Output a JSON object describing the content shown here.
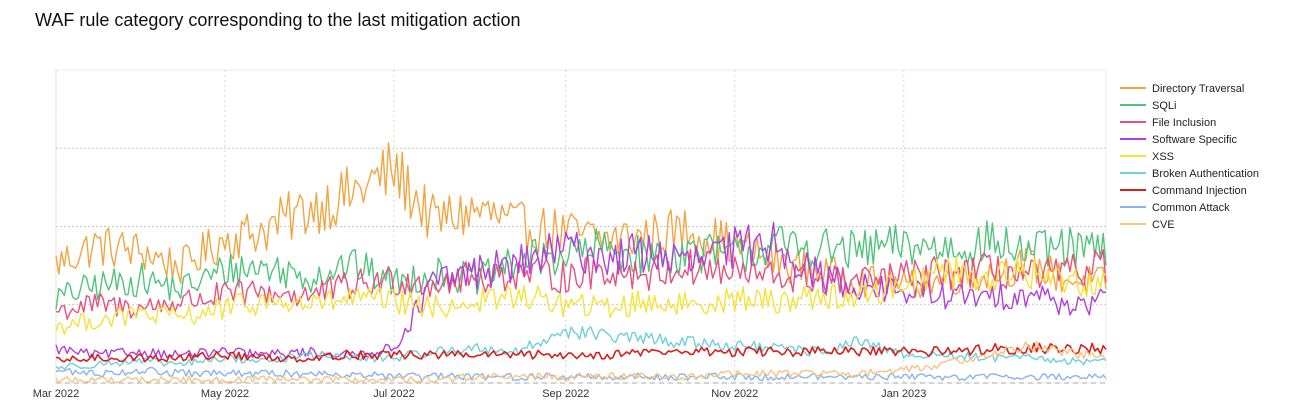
{
  "chart_data": {
    "type": "line",
    "title": "WAF rule category corresponding to the last mitigation action",
    "xlabel": "",
    "ylabel": "",
    "x_range": [
      "2022-03-01",
      "2023-03-15"
    ],
    "x_tick_labels": [
      {
        "date": "2022-03-01",
        "label": "Mar 2022"
      },
      {
        "date": "2022-05-01",
        "label": "May 2022"
      },
      {
        "date": "2022-07-01",
        "label": "Jul 2022"
      },
      {
        "date": "2022-09-01",
        "label": "Sep 2022"
      },
      {
        "date": "2022-11-01",
        "label": "Nov 2022"
      },
      {
        "date": "2023-01-01",
        "label": "Jan 2023"
      }
    ],
    "ylim": [
      0,
      10
    ],
    "grid": true,
    "legend_position": "right",
    "series": [
      {
        "name": "Directory Traversal",
        "color": "#f2a541",
        "points": [
          [
            "2022-03-01",
            3.8
          ],
          [
            "2022-03-15",
            4.4
          ],
          [
            "2022-04-01",
            4.2
          ],
          [
            "2022-04-15",
            3.7
          ],
          [
            "2022-05-01",
            4.6
          ],
          [
            "2022-05-15",
            4.9
          ],
          [
            "2022-06-01",
            5.6
          ],
          [
            "2022-06-15",
            6.0
          ],
          [
            "2022-07-01",
            6.8
          ],
          [
            "2022-07-15",
            5.2
          ],
          [
            "2022-08-01",
            5.5
          ],
          [
            "2022-08-15",
            5.0
          ],
          [
            "2022-09-01",
            4.8
          ],
          [
            "2022-09-15",
            4.6
          ],
          [
            "2022-10-01",
            4.7
          ],
          [
            "2022-10-15",
            4.9
          ],
          [
            "2022-11-01",
            4.4
          ],
          [
            "2022-11-15",
            3.9
          ],
          [
            "2022-12-01",
            3.6
          ],
          [
            "2022-12-15",
            3.3
          ],
          [
            "2023-01-01",
            3.1
          ],
          [
            "2023-01-15",
            3.3
          ],
          [
            "2023-02-01",
            3.5
          ],
          [
            "2023-02-15",
            3.8
          ],
          [
            "2023-03-01",
            3.3
          ],
          [
            "2023-03-15",
            3.2
          ]
        ]
      },
      {
        "name": "SQLi",
        "color": "#4fc47a",
        "points": [
          [
            "2022-03-01",
            2.7
          ],
          [
            "2022-03-15",
            3.1
          ],
          [
            "2022-04-01",
            3.3
          ],
          [
            "2022-04-15",
            3.0
          ],
          [
            "2022-05-01",
            3.6
          ],
          [
            "2022-05-15",
            3.7
          ],
          [
            "2022-06-01",
            3.4
          ],
          [
            "2022-06-15",
            3.8
          ],
          [
            "2022-07-01",
            3.2
          ],
          [
            "2022-07-15",
            3.5
          ],
          [
            "2022-08-01",
            3.3
          ],
          [
            "2022-08-15",
            3.9
          ],
          [
            "2022-09-01",
            4.1
          ],
          [
            "2022-09-15",
            4.3
          ],
          [
            "2022-10-01",
            4.0
          ],
          [
            "2022-10-15",
            4.2
          ],
          [
            "2022-11-01",
            4.1
          ],
          [
            "2022-11-15",
            4.4
          ],
          [
            "2022-12-01",
            4.3
          ],
          [
            "2022-12-15",
            4.2
          ],
          [
            "2023-01-01",
            4.4
          ],
          [
            "2023-01-15",
            4.3
          ],
          [
            "2023-02-01",
            4.5
          ],
          [
            "2023-02-15",
            4.2
          ],
          [
            "2023-03-01",
            4.3
          ],
          [
            "2023-03-15",
            4.2
          ]
        ]
      },
      {
        "name": "File Inclusion",
        "color": "#e8507e",
        "points": [
          [
            "2022-03-01",
            2.3
          ],
          [
            "2022-03-15",
            2.5
          ],
          [
            "2022-04-01",
            2.4
          ],
          [
            "2022-04-15",
            2.6
          ],
          [
            "2022-05-01",
            2.8
          ],
          [
            "2022-05-15",
            2.9
          ],
          [
            "2022-06-01",
            2.8
          ],
          [
            "2022-06-15",
            3.1
          ],
          [
            "2022-07-01",
            3.3
          ],
          [
            "2022-07-15",
            3.2
          ],
          [
            "2022-08-01",
            3.4
          ],
          [
            "2022-08-15",
            3.5
          ],
          [
            "2022-09-01",
            3.4
          ],
          [
            "2022-09-15",
            3.6
          ],
          [
            "2022-10-01",
            3.5
          ],
          [
            "2022-10-15",
            3.7
          ],
          [
            "2022-11-01",
            3.5
          ],
          [
            "2022-11-15",
            3.4
          ],
          [
            "2022-12-01",
            3.3
          ],
          [
            "2022-12-15",
            3.2
          ],
          [
            "2023-01-01",
            3.4
          ],
          [
            "2023-01-15",
            3.5
          ],
          [
            "2023-02-01",
            3.6
          ],
          [
            "2023-02-15",
            3.4
          ],
          [
            "2023-03-01",
            3.5
          ],
          [
            "2023-03-15",
            3.8
          ]
        ]
      },
      {
        "name": "Software Specific",
        "color": "#b33fd9",
        "points": [
          [
            "2022-03-01",
            1.1
          ],
          [
            "2022-03-15",
            0.9
          ],
          [
            "2022-04-01",
            1.0
          ],
          [
            "2022-04-15",
            0.9
          ],
          [
            "2022-05-01",
            1.0
          ],
          [
            "2022-05-15",
            0.9
          ],
          [
            "2022-06-01",
            1.0
          ],
          [
            "2022-06-15",
            0.9
          ],
          [
            "2022-07-01",
            1.1
          ],
          [
            "2022-07-15",
            3.2
          ],
          [
            "2022-08-01",
            3.6
          ],
          [
            "2022-08-15",
            3.8
          ],
          [
            "2022-09-01",
            4.3
          ],
          [
            "2022-09-15",
            4.0
          ],
          [
            "2022-10-01",
            4.2
          ],
          [
            "2022-10-15",
            3.8
          ],
          [
            "2022-11-01",
            4.3
          ],
          [
            "2022-11-15",
            4.6
          ],
          [
            "2022-12-01",
            3.4
          ],
          [
            "2022-12-15",
            3.1
          ],
          [
            "2023-01-01",
            2.9
          ],
          [
            "2023-01-15",
            2.8
          ],
          [
            "2023-02-01",
            2.7
          ],
          [
            "2023-02-15",
            2.9
          ],
          [
            "2023-03-01",
            2.5
          ],
          [
            "2023-03-15",
            2.6
          ]
        ]
      },
      {
        "name": "XSS",
        "color": "#f7e23a",
        "points": [
          [
            "2022-03-01",
            1.8
          ],
          [
            "2022-03-15",
            2.0
          ],
          [
            "2022-04-01",
            2.2
          ],
          [
            "2022-04-15",
            2.1
          ],
          [
            "2022-05-01",
            2.4
          ],
          [
            "2022-05-15",
            2.6
          ],
          [
            "2022-06-01",
            2.5
          ],
          [
            "2022-06-15",
            2.7
          ],
          [
            "2022-07-01",
            2.6
          ],
          [
            "2022-07-15",
            2.4
          ],
          [
            "2022-08-01",
            2.6
          ],
          [
            "2022-08-15",
            2.8
          ],
          [
            "2022-09-01",
            2.5
          ],
          [
            "2022-09-15",
            2.4
          ],
          [
            "2022-10-01",
            2.6
          ],
          [
            "2022-10-15",
            2.5
          ],
          [
            "2022-11-01",
            2.7
          ],
          [
            "2022-11-15",
            2.6
          ],
          [
            "2022-12-01",
            2.8
          ],
          [
            "2022-12-15",
            2.7
          ],
          [
            "2023-01-01",
            3.2
          ],
          [
            "2023-01-15",
            3.6
          ],
          [
            "2023-02-01",
            3.4
          ],
          [
            "2023-02-15",
            3.5
          ],
          [
            "2023-03-01",
            3.3
          ],
          [
            "2023-03-15",
            3.2
          ]
        ]
      },
      {
        "name": "Broken Authentication",
        "color": "#6fcfdb",
        "points": [
          [
            "2022-03-01",
            0.5
          ],
          [
            "2022-03-15",
            0.6
          ],
          [
            "2022-04-01",
            0.7
          ],
          [
            "2022-04-15",
            0.6
          ],
          [
            "2022-05-01",
            0.8
          ],
          [
            "2022-05-15",
            0.7
          ],
          [
            "2022-06-01",
            0.9
          ],
          [
            "2022-06-15",
            0.8
          ],
          [
            "2022-07-01",
            0.8
          ],
          [
            "2022-07-15",
            1.0
          ],
          [
            "2022-08-01",
            1.1
          ],
          [
            "2022-08-15",
            1.0
          ],
          [
            "2022-09-01",
            1.7
          ],
          [
            "2022-09-15",
            1.5
          ],
          [
            "2022-10-01",
            1.4
          ],
          [
            "2022-10-15",
            1.3
          ],
          [
            "2022-11-01",
            1.2
          ],
          [
            "2022-11-15",
            1.1
          ],
          [
            "2022-12-01",
            1.0
          ],
          [
            "2022-12-15",
            1.3
          ],
          [
            "2023-01-01",
            0.9
          ],
          [
            "2023-01-15",
            0.9
          ],
          [
            "2023-02-01",
            0.8
          ],
          [
            "2023-02-15",
            0.8
          ],
          [
            "2023-03-01",
            0.7
          ],
          [
            "2023-03-15",
            0.7
          ]
        ]
      },
      {
        "name": "Command Injection",
        "color": "#d62020",
        "points": [
          [
            "2022-03-01",
            0.7
          ],
          [
            "2022-03-15",
            0.8
          ],
          [
            "2022-04-01",
            0.8
          ],
          [
            "2022-04-15",
            0.8
          ],
          [
            "2022-05-01",
            0.9
          ],
          [
            "2022-05-15",
            0.8
          ],
          [
            "2022-06-01",
            0.8
          ],
          [
            "2022-06-15",
            0.9
          ],
          [
            "2022-07-01",
            0.9
          ],
          [
            "2022-07-15",
            0.9
          ],
          [
            "2022-08-01",
            0.9
          ],
          [
            "2022-08-15",
            0.9
          ],
          [
            "2022-09-01",
            0.9
          ],
          [
            "2022-09-15",
            0.9
          ],
          [
            "2022-10-01",
            1.0
          ],
          [
            "2022-10-15",
            1.0
          ],
          [
            "2022-11-01",
            1.0
          ],
          [
            "2022-11-15",
            1.0
          ],
          [
            "2022-12-01",
            1.0
          ],
          [
            "2022-12-15",
            1.0
          ],
          [
            "2023-01-01",
            1.0
          ],
          [
            "2023-01-15",
            1.0
          ],
          [
            "2023-02-01",
            1.1
          ],
          [
            "2023-02-15",
            1.1
          ],
          [
            "2023-03-01",
            1.1
          ],
          [
            "2023-03-15",
            1.1
          ]
        ]
      },
      {
        "name": "Common Attack",
        "color": "#8ab4ef",
        "points": [
          [
            "2022-03-01",
            0.4
          ],
          [
            "2022-03-15",
            0.3
          ],
          [
            "2022-04-01",
            0.4
          ],
          [
            "2022-04-15",
            0.3
          ],
          [
            "2022-05-01",
            0.3
          ],
          [
            "2022-05-15",
            0.3
          ],
          [
            "2022-06-01",
            0.3
          ],
          [
            "2022-06-15",
            0.3
          ],
          [
            "2022-07-01",
            0.2
          ],
          [
            "2022-07-15",
            0.2
          ],
          [
            "2022-08-01",
            0.2
          ],
          [
            "2022-08-15",
            0.2
          ],
          [
            "2022-09-01",
            0.2
          ],
          [
            "2022-09-15",
            0.2
          ],
          [
            "2022-10-01",
            0.2
          ],
          [
            "2022-10-15",
            0.2
          ],
          [
            "2022-11-01",
            0.2
          ],
          [
            "2022-11-15",
            0.2
          ],
          [
            "2022-12-01",
            0.2
          ],
          [
            "2022-12-15",
            0.2
          ],
          [
            "2023-01-01",
            0.2
          ],
          [
            "2023-01-15",
            0.2
          ],
          [
            "2023-02-01",
            0.2
          ],
          [
            "2023-02-15",
            0.2
          ],
          [
            "2023-03-01",
            0.2
          ],
          [
            "2023-03-15",
            0.2
          ]
        ]
      },
      {
        "name": "CVE",
        "color": "#f7c37e",
        "points": [
          [
            "2022-03-01",
            0.1
          ],
          [
            "2022-03-15",
            0.1
          ],
          [
            "2022-04-01",
            0.1
          ],
          [
            "2022-04-15",
            0.1
          ],
          [
            "2022-05-01",
            0.1
          ],
          [
            "2022-05-15",
            0.1
          ],
          [
            "2022-06-01",
            0.1
          ],
          [
            "2022-06-15",
            0.1
          ],
          [
            "2022-07-01",
            0.1
          ],
          [
            "2022-07-15",
            0.1
          ],
          [
            "2022-08-01",
            0.2
          ],
          [
            "2022-08-15",
            0.2
          ],
          [
            "2022-09-01",
            0.2
          ],
          [
            "2022-09-15",
            0.2
          ],
          [
            "2022-10-01",
            0.2
          ],
          [
            "2022-10-15",
            0.2
          ],
          [
            "2022-11-01",
            0.3
          ],
          [
            "2022-11-15",
            0.3
          ],
          [
            "2022-12-01",
            0.3
          ],
          [
            "2022-12-15",
            0.3
          ],
          [
            "2023-01-01",
            0.4
          ],
          [
            "2023-01-15",
            0.6
          ],
          [
            "2023-02-01",
            0.9
          ],
          [
            "2023-02-15",
            1.2
          ],
          [
            "2023-03-01",
            1.0
          ],
          [
            "2023-03-15",
            0.8
          ]
        ]
      }
    ]
  }
}
